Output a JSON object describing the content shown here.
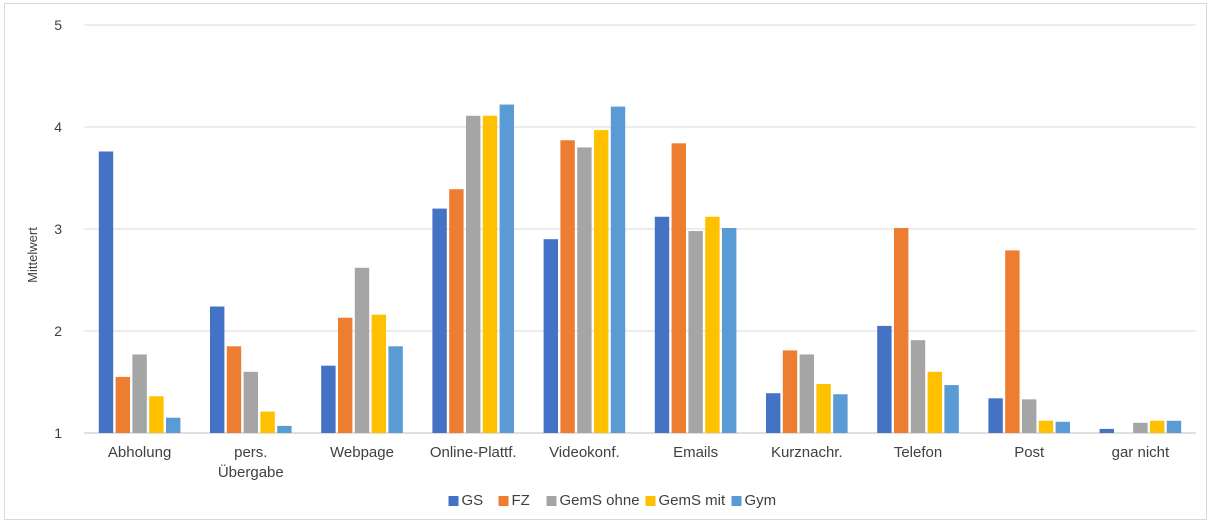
{
  "chart_data": {
    "type": "bar",
    "title": "",
    "xlabel": "",
    "ylabel": "Mittelwert",
    "ylim": [
      1,
      5
    ],
    "yticks": [
      1,
      2,
      3,
      4,
      5
    ],
    "grid": true,
    "legend_position": "bottom",
    "categories": [
      [
        "Abholung"
      ],
      [
        "pers.",
        "Übergabe"
      ],
      [
        "Webpage"
      ],
      [
        "Online-Plattf."
      ],
      [
        "Videokonf."
      ],
      [
        "Emails"
      ],
      [
        "Kurznachr."
      ],
      [
        "Telefon"
      ],
      [
        "Post"
      ],
      [
        "gar nicht"
      ]
    ],
    "series": [
      {
        "name": "GS",
        "color": "#4472c4",
        "values": [
          3.76,
          2.24,
          1.66,
          3.2,
          2.9,
          3.12,
          1.39,
          2.05,
          1.34,
          1.04
        ]
      },
      {
        "name": "FZ",
        "color": "#ed7d31",
        "values": [
          1.55,
          1.85,
          2.13,
          3.39,
          3.87,
          3.84,
          1.81,
          3.01,
          2.79,
          1.0
        ]
      },
      {
        "name": "GemS ohne",
        "color": "#a5a5a5",
        "values": [
          1.77,
          1.6,
          2.62,
          4.11,
          3.8,
          2.98,
          1.77,
          1.91,
          1.33,
          1.1
        ]
      },
      {
        "name": "GemS mit",
        "color": "#ffc000",
        "values": [
          1.36,
          1.21,
          2.16,
          4.11,
          3.97,
          3.12,
          1.48,
          1.6,
          1.12,
          1.12
        ]
      },
      {
        "name": "Gym",
        "color": "#5b9bd5",
        "values": [
          1.15,
          1.07,
          1.85,
          4.22,
          4.2,
          3.01,
          1.38,
          1.47,
          1.11,
          1.12
        ]
      }
    ]
  }
}
